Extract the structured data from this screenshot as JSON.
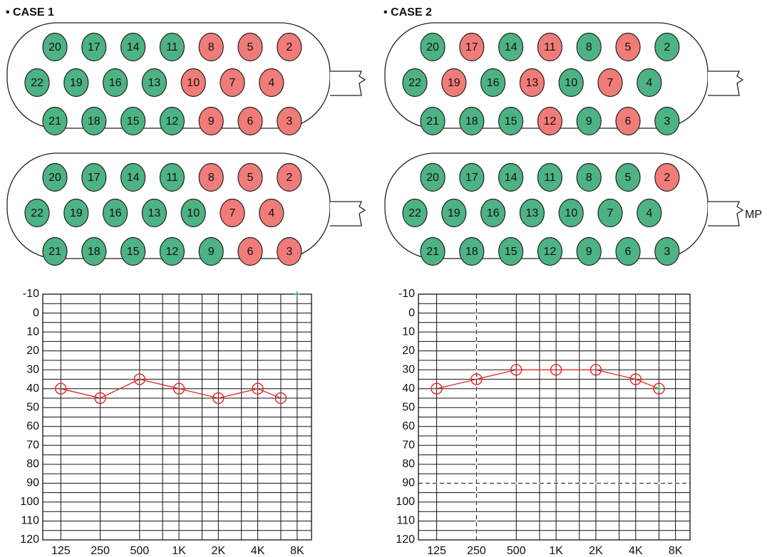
{
  "cases": [
    {
      "title": "• CASE 1",
      "arrays": [
        {
          "electrodes": [
            {
              "label": "20",
              "color": "#4db384"
            },
            {
              "label": "17",
              "color": "#4db384"
            },
            {
              "label": "14",
              "color": "#4db384"
            },
            {
              "label": "11",
              "color": "#4db384"
            },
            {
              "label": "8",
              "color": "#f07c79"
            },
            {
              "label": "5",
              "color": "#f07c79"
            },
            {
              "label": "2",
              "color": "#f07c79"
            },
            {
              "label": "22",
              "color": "#4db384"
            },
            {
              "label": "19",
              "color": "#4db384"
            },
            {
              "label": "16",
              "color": "#4db384"
            },
            {
              "label": "13",
              "color": "#4db384"
            },
            {
              "label": "10",
              "color": "#f07c79"
            },
            {
              "label": "7",
              "color": "#f07c79"
            },
            {
              "label": "4",
              "color": "#f07c79"
            },
            {
              "label": "21",
              "color": "#4db384"
            },
            {
              "label": "18",
              "color": "#4db384"
            },
            {
              "label": "15",
              "color": "#4db384"
            },
            {
              "label": "12",
              "color": "#4db384"
            },
            {
              "label": "9",
              "color": "#f07c79"
            },
            {
              "label": "6",
              "color": "#f07c79"
            },
            {
              "label": "3",
              "color": "#f07c79"
            }
          ]
        },
        {
          "electrodes": [
            {
              "label": "20",
              "color": "#4db384"
            },
            {
              "label": "17",
              "color": "#4db384"
            },
            {
              "label": "14",
              "color": "#4db384"
            },
            {
              "label": "11",
              "color": "#4db384"
            },
            {
              "label": "8",
              "color": "#f07c79"
            },
            {
              "label": "5",
              "color": "#f07c79"
            },
            {
              "label": "2",
              "color": "#f07c79"
            },
            {
              "label": "22",
              "color": "#4db384"
            },
            {
              "label": "19",
              "color": "#4db384"
            },
            {
              "label": "16",
              "color": "#4db384"
            },
            {
              "label": "13",
              "color": "#4db384"
            },
            {
              "label": "10",
              "color": "#4db384"
            },
            {
              "label": "7",
              "color": "#f07c79"
            },
            {
              "label": "4",
              "color": "#f07c79"
            },
            {
              "label": "21",
              "color": "#4db384"
            },
            {
              "label": "18",
              "color": "#4db384"
            },
            {
              "label": "15",
              "color": "#4db384"
            },
            {
              "label": "12",
              "color": "#4db384"
            },
            {
              "label": "9",
              "color": "#4db384"
            },
            {
              "label": "6",
              "color": "#f07c79"
            },
            {
              "label": "3",
              "color": "#f07c79"
            }
          ]
        }
      ]
    },
    {
      "title": "• CASE 2",
      "arrays": [
        {
          "electrodes": [
            {
              "label": "20",
              "color": "#4db384"
            },
            {
              "label": "17",
              "color": "#f07c79"
            },
            {
              "label": "14",
              "color": "#4db384"
            },
            {
              "label": "11",
              "color": "#f07c79"
            },
            {
              "label": "8",
              "color": "#4db384"
            },
            {
              "label": "5",
              "color": "#f07c79"
            },
            {
              "label": "2",
              "color": "#4db384"
            },
            {
              "label": "22",
              "color": "#4db384"
            },
            {
              "label": "19",
              "color": "#f07c79"
            },
            {
              "label": "16",
              "color": "#4db384"
            },
            {
              "label": "13",
              "color": "#f07c79"
            },
            {
              "label": "10",
              "color": "#4db384"
            },
            {
              "label": "7",
              "color": "#f07c79"
            },
            {
              "label": "4",
              "color": "#4db384"
            },
            {
              "label": "21",
              "color": "#4db384"
            },
            {
              "label": "18",
              "color": "#4db384"
            },
            {
              "label": "15",
              "color": "#4db384"
            },
            {
              "label": "12",
              "color": "#f07c79"
            },
            {
              "label": "9",
              "color": "#4db384"
            },
            {
              "label": "6",
              "color": "#f07c79"
            },
            {
              "label": "3",
              "color": "#4db384"
            }
          ]
        },
        {
          "connector_label": "MP",
          "electrodes": [
            {
              "label": "20",
              "color": "#4db384"
            },
            {
              "label": "17",
              "color": "#4db384"
            },
            {
              "label": "14",
              "color": "#4db384"
            },
            {
              "label": "11",
              "color": "#4db384"
            },
            {
              "label": "8",
              "color": "#4db384"
            },
            {
              "label": "5",
              "color": "#4db384"
            },
            {
              "label": "2",
              "color": "#f07c79"
            },
            {
              "label": "22",
              "color": "#4db384"
            },
            {
              "label": "19",
              "color": "#4db384"
            },
            {
              "label": "16",
              "color": "#4db384"
            },
            {
              "label": "13",
              "color": "#4db384"
            },
            {
              "label": "10",
              "color": "#4db384"
            },
            {
              "label": "7",
              "color": "#4db384"
            },
            {
              "label": "4",
              "color": "#4db384"
            },
            {
              "label": "21",
              "color": "#4db384"
            },
            {
              "label": "18",
              "color": "#4db384"
            },
            {
              "label": "15",
              "color": "#4db384"
            },
            {
              "label": "12",
              "color": "#4db384"
            },
            {
              "label": "9",
              "color": "#4db384"
            },
            {
              "label": "6",
              "color": "#4db384"
            },
            {
              "label": "3",
              "color": "#4db384"
            }
          ]
        }
      ]
    }
  ],
  "chart_data": [
    {
      "type": "line",
      "log_x": true,
      "invert_y": true,
      "grid": true,
      "xlim": [
        91,
        10300
      ],
      "ylim": [
        -10,
        120
      ],
      "xticks": [
        {
          "value": 125,
          "label": "125"
        },
        {
          "value": 250,
          "label": "250"
        },
        {
          "value": 500,
          "label": "500"
        },
        {
          "value": 1000,
          "label": "1K"
        },
        {
          "value": 2000,
          "label": "2K"
        },
        {
          "value": 4000,
          "label": "4K"
        },
        {
          "value": 8000,
          "label": "8K"
        }
      ],
      "minor_xgrid": [
        750,
        1500,
        3000,
        6000
      ],
      "yticks": [
        -10,
        0,
        10,
        20,
        30,
        40,
        50,
        60,
        70,
        80,
        90,
        100,
        110,
        120
      ],
      "minor_ygrid": [
        -5,
        5,
        15,
        25,
        35,
        45,
        55,
        65,
        75,
        85,
        95,
        105,
        115
      ],
      "series": [
        {
          "color": "#e8211d",
          "marker": "circle",
          "x": [
            125,
            250,
            500,
            1000,
            2000,
            4000,
            6000
          ],
          "values": [
            40,
            45,
            35,
            40,
            45,
            40,
            45
          ]
        },
        {
          "color": "#2db84a",
          "marker": "plus",
          "x": [
            8000
          ],
          "values": [
            -10
          ]
        }
      ]
    },
    {
      "type": "line",
      "log_x": true,
      "invert_y": true,
      "grid": true,
      "xlim": [
        91,
        10300
      ],
      "ylim": [
        -10,
        120
      ],
      "xticks": [
        {
          "value": 125,
          "label": "125"
        },
        {
          "value": 250,
          "label": "250"
        },
        {
          "value": 500,
          "label": "500"
        },
        {
          "value": 1000,
          "label": "1K"
        },
        {
          "value": 2000,
          "label": "2K"
        },
        {
          "value": 4000,
          "label": "4K"
        },
        {
          "value": 8000,
          "label": "8K"
        }
      ],
      "minor_xgrid": [
        750,
        1500,
        3000,
        6000
      ],
      "yticks": [
        -10,
        0,
        10,
        20,
        30,
        40,
        50,
        60,
        70,
        80,
        90,
        100,
        110,
        120
      ],
      "minor_ygrid": [
        -5,
        5,
        15,
        25,
        35,
        45,
        55,
        65,
        75,
        85,
        95,
        105,
        115
      ],
      "ref_x": [
        250
      ],
      "ref_y": [
        90
      ],
      "series": [
        {
          "color": "#e8211d",
          "marker": "circle",
          "x": [
            125,
            250,
            500,
            1000,
            2000,
            4000,
            6000
          ],
          "values": [
            40,
            35,
            30,
            30,
            30,
            35,
            40
          ]
        },
        {
          "color": "#2db84a",
          "marker": "plus",
          "x": [
            6000
          ],
          "values": [
            40
          ]
        }
      ]
    }
  ]
}
